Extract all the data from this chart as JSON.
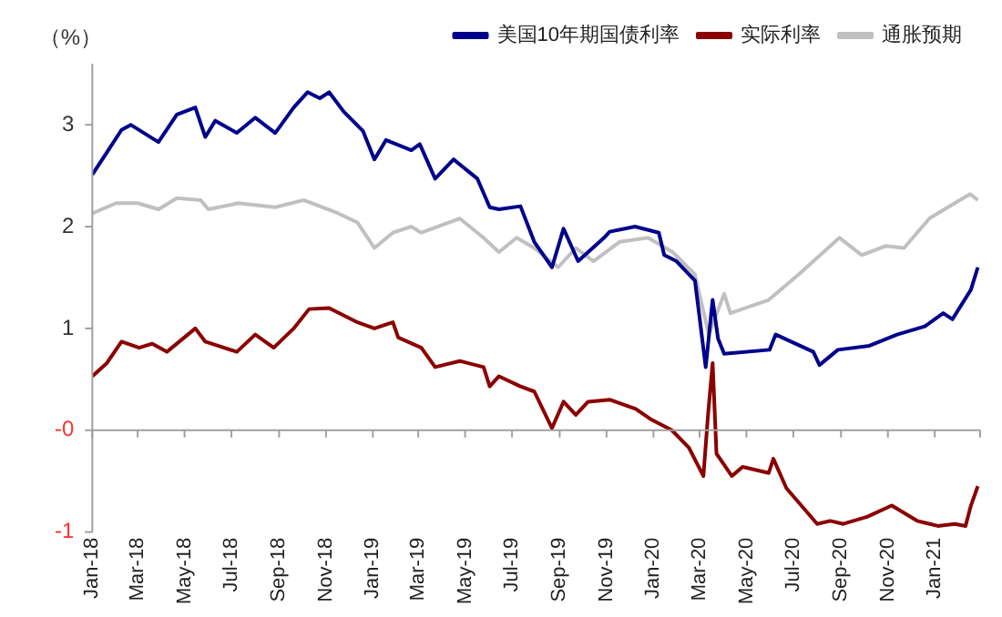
{
  "chart_data": {
    "type": "line",
    "ylabel": "（%）",
    "legend": "top",
    "marker": "none",
    "line_style": "solid",
    "xlim": [
      "2018-01-01",
      "2021-03-01"
    ],
    "xticks": [
      {
        "value": "2018-01-01",
        "label": "Jan-18"
      },
      {
        "value": "2018-03-01",
        "label": "Mar-18"
      },
      {
        "value": "2018-05-01",
        "label": "May-18"
      },
      {
        "value": "2018-07-01",
        "label": "Jul-18"
      },
      {
        "value": "2018-09-01",
        "label": "Sep-18"
      },
      {
        "value": "2018-11-01",
        "label": "Nov-18"
      },
      {
        "value": "2019-01-01",
        "label": "Jan-19"
      },
      {
        "value": "2019-03-01",
        "label": "Mar-19"
      },
      {
        "value": "2019-05-01",
        "label": "May-19"
      },
      {
        "value": "2019-07-01",
        "label": "Jul-19"
      },
      {
        "value": "2019-09-01",
        "label": "Sep-19"
      },
      {
        "value": "2019-11-01",
        "label": "Nov-19"
      },
      {
        "value": "2020-01-01",
        "label": "Jan-20"
      },
      {
        "value": "2020-03-01",
        "label": "Mar-20"
      },
      {
        "value": "2020-05-01",
        "label": "May-20"
      },
      {
        "value": "2020-07-01",
        "label": "Jul-20"
      },
      {
        "value": "2020-09-01",
        "label": "Sep-20"
      },
      {
        "value": "2020-11-01",
        "label": "Nov-20"
      },
      {
        "value": "2021-01-01",
        "label": "Jan-21"
      }
    ],
    "ylim": [
      -1,
      3.6
    ],
    "yticks": [
      {
        "value": -1,
        "label": "-1"
      },
      {
        "value": 0,
        "label": "-0"
      },
      1,
      2,
      3
    ],
    "series": [
      {
        "name": "美国10年期国债利率",
        "color": "#00008b",
        "x": [
          "2018-01-01",
          "2018-01-20",
          "2018-02-08",
          "2018-02-20",
          "2018-03-28",
          "2018-04-21",
          "2018-05-15",
          "2018-05-28",
          "2018-06-10",
          "2018-07-08",
          "2018-08-01",
          "2018-08-27",
          "2018-09-20",
          "2018-10-08",
          "2018-10-24",
          "2018-11-05",
          "2018-11-24",
          "2018-12-19",
          "2019-01-03",
          "2019-01-18",
          "2019-02-20",
          "2019-03-03",
          "2019-03-23",
          "2019-04-16",
          "2019-05-17",
          "2019-06-02",
          "2019-06-14",
          "2019-07-12",
          "2019-07-30",
          "2019-08-22",
          "2019-09-06",
          "2019-09-25",
          "2019-10-30",
          "2019-11-05",
          "2019-12-08",
          "2020-01-08",
          "2020-01-15",
          "2020-01-31",
          "2020-02-24",
          "2020-03-09",
          "2020-03-18",
          "2020-03-25",
          "2020-04-02",
          "2020-05-31",
          "2020-06-08",
          "2020-07-27",
          "2020-08-04",
          "2020-08-28",
          "2020-10-08",
          "2020-11-13",
          "2020-12-19",
          "2021-01-12",
          "2021-01-24",
          "2021-02-17",
          "2021-02-26"
        ],
        "values": [
          2.51,
          2.73,
          2.95,
          3.0,
          2.83,
          3.1,
          3.17,
          2.88,
          3.04,
          2.92,
          3.07,
          2.92,
          3.17,
          3.32,
          3.26,
          3.32,
          3.13,
          2.94,
          2.66,
          2.85,
          2.75,
          2.81,
          2.47,
          2.66,
          2.47,
          2.19,
          2.17,
          2.2,
          1.85,
          1.6,
          1.98,
          1.66,
          1.9,
          1.95,
          2.0,
          1.94,
          1.72,
          1.66,
          1.47,
          0.62,
          1.28,
          0.9,
          0.75,
          0.79,
          0.94,
          0.77,
          0.64,
          0.79,
          0.83,
          0.94,
          1.02,
          1.15,
          1.09,
          1.38,
          1.6
        ]
      },
      {
        "name": "实际利率",
        "color": "#8b0000",
        "x": [
          "2018-01-01",
          "2018-01-20",
          "2018-02-08",
          "2018-03-03",
          "2018-03-20",
          "2018-04-08",
          "2018-05-15",
          "2018-05-28",
          "2018-07-08",
          "2018-08-01",
          "2018-08-25",
          "2018-09-20",
          "2018-10-10",
          "2018-11-05",
          "2018-12-12",
          "2019-01-03",
          "2019-01-27",
          "2019-02-03",
          "2019-03-05",
          "2019-03-23",
          "2019-04-24",
          "2019-05-25",
          "2019-06-02",
          "2019-06-14",
          "2019-07-12",
          "2019-07-30",
          "2019-08-22",
          "2019-09-06",
          "2019-09-22",
          "2019-10-08",
          "2019-11-05",
          "2019-12-09",
          "2019-12-28",
          "2020-01-25",
          "2020-02-16",
          "2020-03-06",
          "2020-03-12",
          "2020-03-18",
          "2020-03-23",
          "2020-04-12",
          "2020-04-26",
          "2020-05-30",
          "2020-06-05",
          "2020-06-22",
          "2020-08-01",
          "2020-08-18",
          "2020-09-04",
          "2020-10-05",
          "2020-11-06",
          "2020-12-09",
          "2021-01-05",
          "2021-01-27",
          "2021-02-10",
          "2021-02-17",
          "2021-02-26"
        ],
        "values": [
          0.53,
          0.66,
          0.87,
          0.81,
          0.85,
          0.77,
          1.0,
          0.87,
          0.77,
          0.94,
          0.81,
          1.0,
          1.19,
          1.2,
          1.06,
          1.0,
          1.06,
          0.91,
          0.81,
          0.62,
          0.68,
          0.62,
          0.43,
          0.53,
          0.43,
          0.38,
          0.02,
          0.28,
          0.15,
          0.28,
          0.3,
          0.21,
          0.11,
          0.0,
          -0.17,
          -0.45,
          0.15,
          0.66,
          -0.23,
          -0.45,
          -0.36,
          -0.42,
          -0.28,
          -0.57,
          -0.92,
          -0.89,
          -0.92,
          -0.85,
          -0.74,
          -0.89,
          -0.94,
          -0.92,
          -0.94,
          -0.74,
          -0.55
        ]
      },
      {
        "name": "通胀预期",
        "color": "#c0c0c0",
        "x": [
          "2018-01-01",
          "2018-02-01",
          "2018-03-01",
          "2018-03-28",
          "2018-04-21",
          "2018-05-22",
          "2018-06-01",
          "2018-07-10",
          "2018-08-27",
          "2018-10-03",
          "2018-11-17",
          "2018-12-12",
          "2019-01-03",
          "2019-01-27",
          "2019-02-20",
          "2019-03-05",
          "2019-04-24",
          "2019-05-25",
          "2019-06-14",
          "2019-07-07",
          "2019-07-30",
          "2019-08-30",
          "2019-09-22",
          "2019-10-15",
          "2019-11-18",
          "2019-12-25",
          "2020-01-26",
          "2020-02-24",
          "2020-03-13",
          "2020-04-02",
          "2020-04-10",
          "2020-05-30",
          "2020-07-08",
          "2020-08-30",
          "2020-09-28",
          "2020-10-29",
          "2020-11-22",
          "2020-12-25",
          "2021-01-27",
          "2021-02-16",
          "2021-02-26"
        ],
        "values": [
          2.13,
          2.23,
          2.23,
          2.17,
          2.28,
          2.26,
          2.17,
          2.23,
          2.19,
          2.26,
          2.13,
          2.04,
          1.79,
          1.94,
          2.0,
          1.94,
          2.08,
          1.89,
          1.75,
          1.89,
          1.79,
          1.6,
          1.79,
          1.66,
          1.85,
          1.89,
          1.75,
          1.53,
          0.94,
          1.34,
          1.15,
          1.28,
          1.53,
          1.89,
          1.72,
          1.81,
          1.79,
          2.08,
          2.23,
          2.32,
          2.26
        ]
      }
    ]
  }
}
